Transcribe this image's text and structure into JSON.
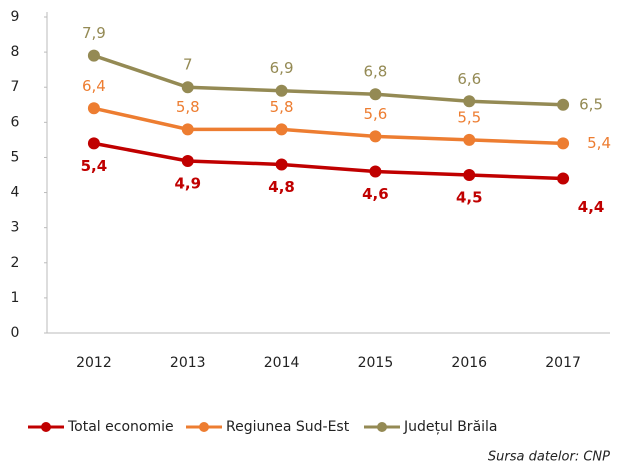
{
  "chart_data": {
    "type": "line",
    "categories": [
      "2012",
      "2013",
      "2014",
      "2015",
      "2016",
      "2017"
    ],
    "series": [
      {
        "name": "Total economie",
        "color": "#c00000",
        "values": [
          5.4,
          4.9,
          4.8,
          4.6,
          4.5,
          4.4
        ],
        "value_labels": [
          "5,4",
          "4,9",
          "4,8",
          "4,6",
          "4,5",
          "4,4"
        ]
      },
      {
        "name": "Regiunea Sud-Est",
        "color": "#ed7d31",
        "values": [
          6.4,
          5.8,
          5.8,
          5.6,
          5.5,
          5.4
        ],
        "value_labels": [
          "6,4",
          "5,8",
          "5,8",
          "5,6",
          "5,5",
          "5,4"
        ]
      },
      {
        "name": "Județul Brăila",
        "color": "#948a54",
        "values": [
          7.9,
          7.0,
          6.9,
          6.8,
          6.6,
          6.5
        ],
        "value_labels": [
          "7,9",
          "7",
          "6,9",
          "6,8",
          "6,6",
          "6,5"
        ]
      }
    ],
    "ylim": [
      0,
      9
    ],
    "yticks": [
      0,
      1,
      2,
      3,
      4,
      5,
      6,
      7,
      8,
      9
    ],
    "grid": false,
    "legend": "bottom",
    "source": "Sursa datelor: CNP"
  }
}
